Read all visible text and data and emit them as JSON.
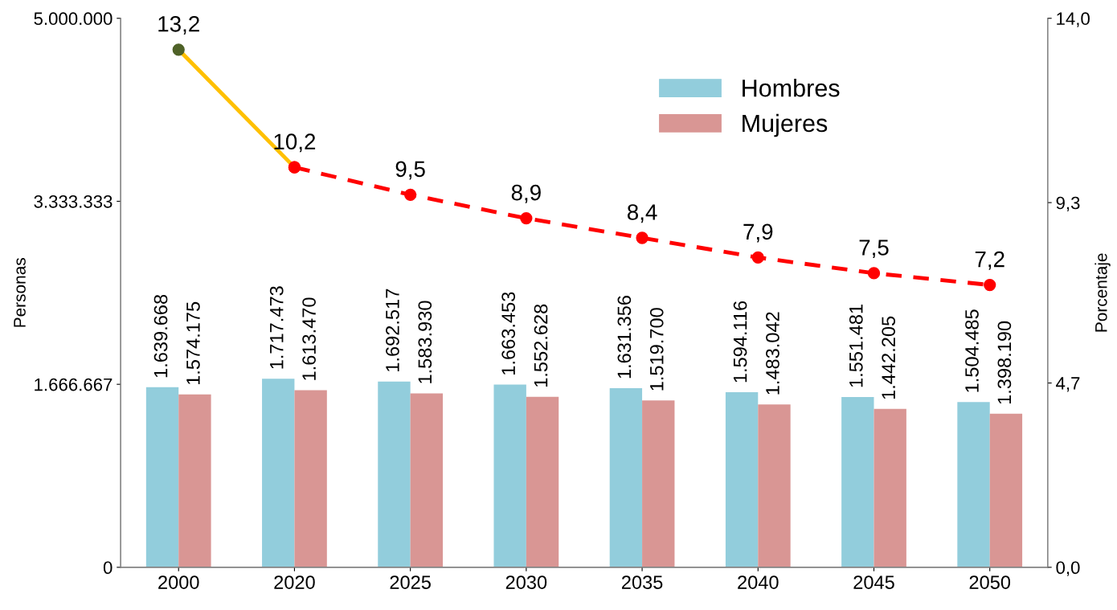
{
  "chart_data": {
    "type": "bar",
    "categories": [
      "2000",
      "2020",
      "2025",
      "2030",
      "2035",
      "2040",
      "2045",
      "2050"
    ],
    "ylabel": "Personas",
    "y2label": "Porcentaje",
    "ylim": [
      0,
      5000000
    ],
    "yticks": [
      0,
      {
        "value": 1666667,
        "label": "1.666.667"
      },
      {
        "value": 3333333,
        "label": "3.333.333"
      },
      {
        "value": 5000000,
        "label": "5.000.000"
      }
    ],
    "y2lim": [
      0,
      14
    ],
    "y2ticks": [
      {
        "value": 0,
        "label": "0,0"
      },
      {
        "value": 4.7,
        "label": "4,7"
      },
      {
        "value": 9.3,
        "label": "9,3"
      },
      {
        "value": 14,
        "label": "14,0"
      }
    ],
    "series": [
      {
        "name": "Hombres",
        "color": "#92cddc",
        "values": [
          1639668,
          1717473,
          1692517,
          1663453,
          1631356,
          1594116,
          1551481,
          1504485
        ],
        "value_labels": [
          "1.639.668",
          "1.717.473",
          "1.692.517",
          "1.663.453",
          "1.631.356",
          "1.594.116",
          "1.551.481",
          "1.504.485"
        ]
      },
      {
        "name": "Mujeres",
        "color": "#d99694",
        "values": [
          1574175,
          1613470,
          1583930,
          1552628,
          1519700,
          1483042,
          1442205,
          1398190
        ],
        "value_labels": [
          "1.574.175",
          "1.613.470",
          "1.583.930",
          "1.552.628",
          "1.519.700",
          "1.483.042",
          "1.442.205",
          "1.398.190"
        ]
      },
      {
        "type": "line",
        "axis": "y2",
        "color": "#ffc000",
        "colors": [
          "#4f6228",
          "#ff0000",
          null,
          null,
          null,
          null,
          null,
          null
        ],
        "line_style": "solid",
        "marker": "circle",
        "values": [
          13.2,
          10.2,
          null,
          null,
          null,
          null,
          null,
          null
        ],
        "value_labels": [
          "13,2",
          null,
          null,
          null,
          null,
          null,
          null,
          null
        ]
      },
      {
        "type": "line",
        "axis": "y2",
        "color": "#ff0000",
        "line_style": "dashed",
        "marker": "circle",
        "values": [
          null,
          10.2,
          9.5,
          8.9,
          8.4,
          7.9,
          7.5,
          7.2
        ],
        "value_labels": [
          null,
          "10,2",
          "9,5",
          "8,9",
          "8,4",
          "7,9",
          "7,5",
          "7,2"
        ]
      }
    ],
    "legend": "top right",
    "grid": false
  }
}
